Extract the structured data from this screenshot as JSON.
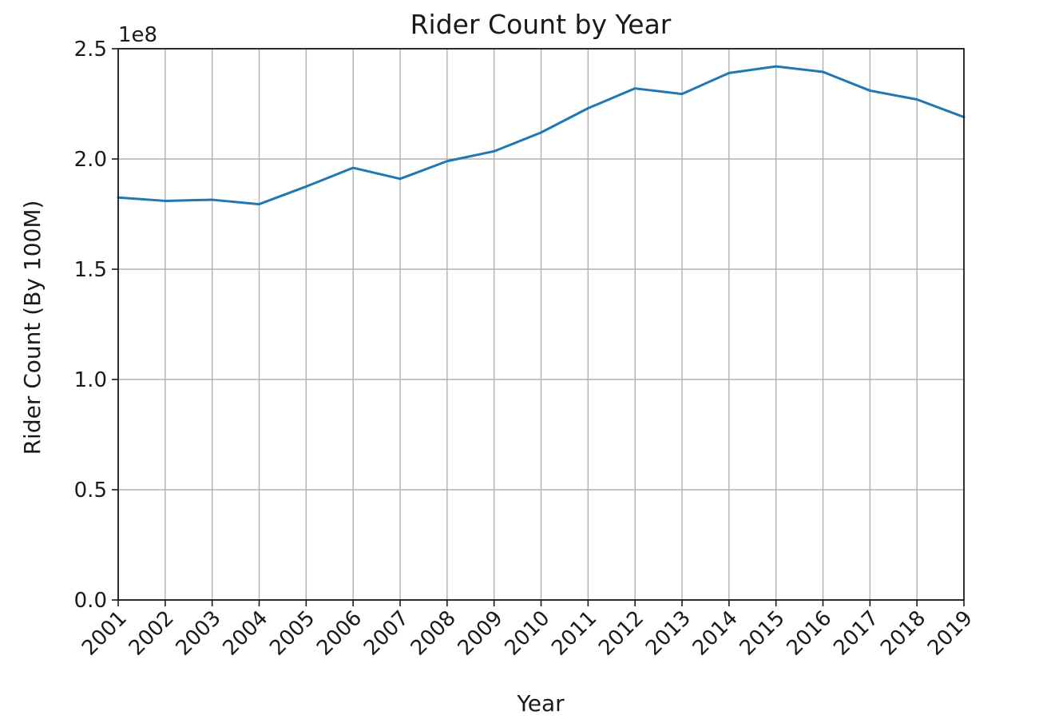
{
  "chart_data": {
    "type": "line",
    "title": "Rider Count by Year",
    "xlabel": "Year",
    "ylabel": "Rider Count (By 100M)",
    "y_offset_label": "1e8",
    "x": [
      "2001",
      "2002",
      "2003",
      "2004",
      "2005",
      "2006",
      "2007",
      "2008",
      "2009",
      "2010",
      "2011",
      "2012",
      "2013",
      "2014",
      "2015",
      "2016",
      "2017",
      "2018",
      "2019"
    ],
    "series": [
      {
        "values": [
          1.825,
          1.81,
          1.815,
          1.795,
          1.875,
          1.96,
          1.91,
          1.99,
          2.035,
          2.12,
          2.23,
          2.32,
          2.295,
          2.39,
          2.42,
          2.395,
          2.31,
          2.27,
          2.19
        ],
        "color": "#1f77b4"
      }
    ],
    "ylim": [
      0.0,
      2.5
    ],
    "yticks": [
      0.0,
      0.5,
      1.0,
      1.5,
      2.0,
      2.5
    ],
    "ytick_labels": [
      "0.0",
      "0.5",
      "1.0",
      "1.5",
      "2.0",
      "2.5"
    ],
    "xtick_rotation": 45,
    "grid": true
  }
}
